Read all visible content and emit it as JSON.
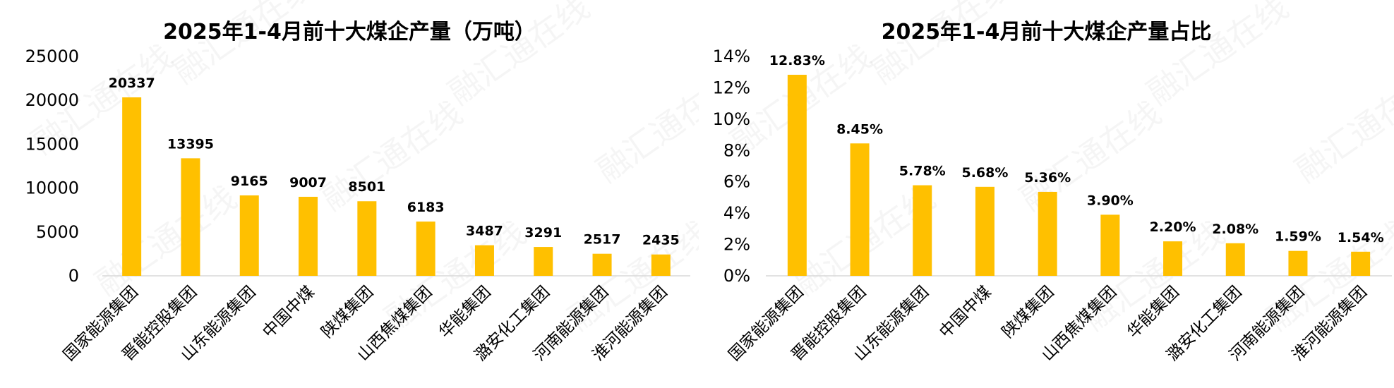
{
  "colors": {
    "bar": "#FFC000",
    "axis": "#D9D9D9",
    "text": "#000000"
  },
  "watermark": "融汇通在线",
  "chart_data": [
    {
      "type": "bar",
      "title": "2025年1-4月前十大煤企产量（万吨）",
      "categories": [
        "国家能源集团",
        "晋能控股集团",
        "山东能源集团",
        "中国中煤",
        "陕煤集团",
        "山西焦煤集团",
        "华能集团",
        "潞安化工集团",
        "河南能源集团",
        "淮河能源集团"
      ],
      "values": [
        20337,
        13395,
        9165,
        9007,
        8501,
        6183,
        3487,
        3291,
        2517,
        2435
      ],
      "value_labels": [
        "20337",
        "13395",
        "9165",
        "9007",
        "8501",
        "6183",
        "3487",
        "3291",
        "2517",
        "2435"
      ],
      "ylim": [
        0,
        25000
      ],
      "yticks": [
        0,
        5000,
        10000,
        15000,
        20000,
        25000
      ],
      "ytick_labels": [
        "0",
        "5000",
        "10000",
        "15000",
        "20000",
        "25000"
      ],
      "grid": false,
      "legend": "none"
    },
    {
      "type": "bar",
      "title": "2025年1-4月前十大煤企产量占比",
      "categories": [
        "国家能源集团",
        "晋能控股集团",
        "山东能源集团",
        "中国中煤",
        "陕煤集团",
        "山西焦煤集团",
        "华能集团",
        "潞安化工集团",
        "河南能源集团",
        "淮河能源集团"
      ],
      "values": [
        12.83,
        8.45,
        5.78,
        5.68,
        5.36,
        3.9,
        2.2,
        2.08,
        1.59,
        1.54
      ],
      "value_labels": [
        "12.83%",
        "8.45%",
        "5.78%",
        "5.68%",
        "5.36%",
        "3.90%",
        "2.20%",
        "2.08%",
        "1.59%",
        "1.54%"
      ],
      "ylim": [
        0,
        14
      ],
      "yticks": [
        0,
        2,
        4,
        6,
        8,
        10,
        12,
        14
      ],
      "ytick_labels": [
        "0%",
        "2%",
        "4%",
        "6%",
        "8%",
        "10%",
        "12%",
        "14%"
      ],
      "grid": false,
      "legend": "none"
    }
  ]
}
